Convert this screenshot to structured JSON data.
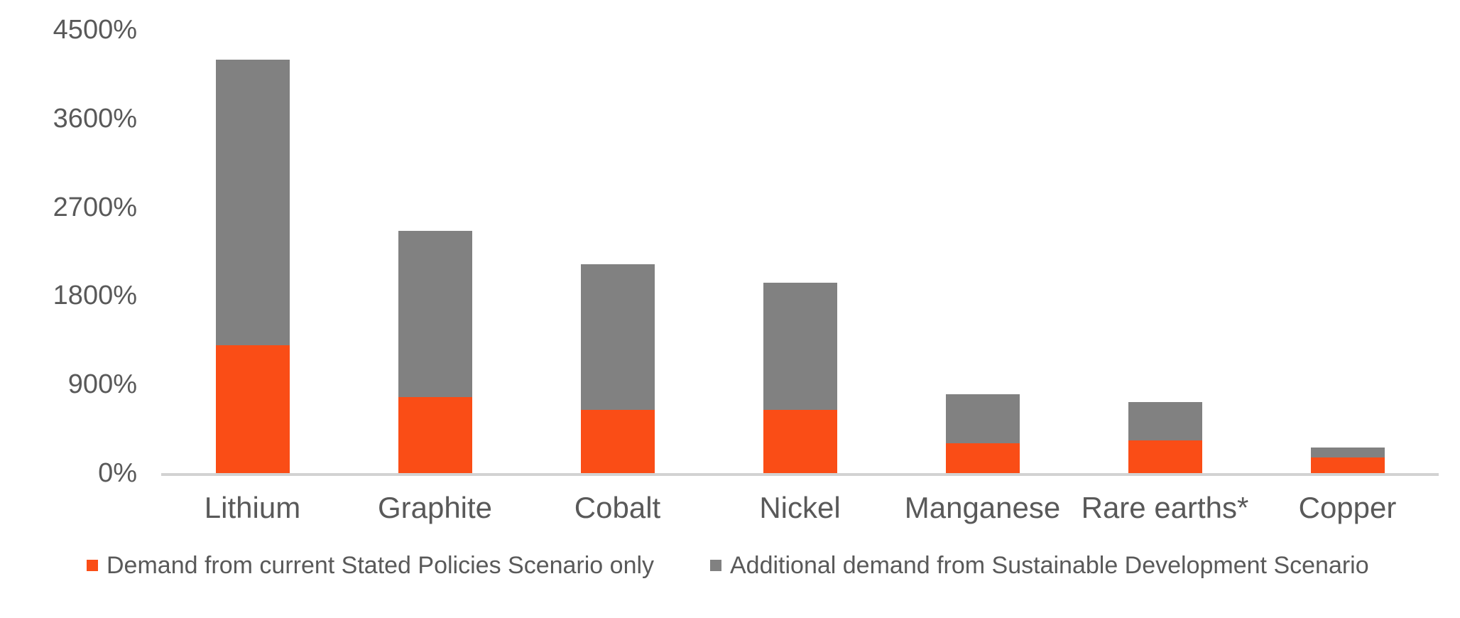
{
  "chart_data": {
    "type": "bar",
    "stacked": true,
    "title": "",
    "xlabel": "",
    "ylabel": "",
    "categories": [
      "Lithium",
      "Graphite",
      "Cobalt",
      "Nickel",
      "Manganese",
      "Rare earths*",
      "Copper"
    ],
    "series": [
      {
        "name": "Demand from current Stated Policies Scenario only",
        "color": "#fa4d16",
        "values": [
          1300,
          770,
          640,
          640,
          300,
          330,
          160
        ]
      },
      {
        "name": "Additional demand from Sustainable Development Scenario",
        "color": "#818181",
        "values": [
          2900,
          1690,
          1480,
          1290,
          500,
          390,
          100
        ]
      }
    ],
    "ylim": [
      0,
      4500
    ],
    "yticks": [
      {
        "value": 0,
        "label": "0%"
      },
      {
        "value": 900,
        "label": "900%"
      },
      {
        "value": 1800,
        "label": "1800%"
      },
      {
        "value": 2700,
        "label": "2700%"
      },
      {
        "value": 3600,
        "label": "3600%"
      },
      {
        "value": 4500,
        "label": "4500%"
      }
    ],
    "grid": false,
    "legend_position": "bottom-left",
    "axis_line_color": "#d2d2d2",
    "text_color": "#595959",
    "background_color": "#ffffff"
  }
}
